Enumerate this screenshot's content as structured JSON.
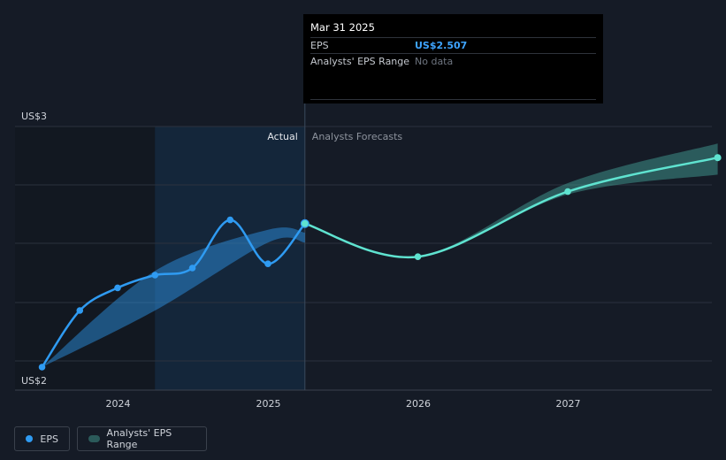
{
  "chart_data": {
    "type": "line",
    "y_axis": {
      "min_label": "US$2",
      "max_label": "US$3",
      "ylim": [
        2.0,
        2.85
      ]
    },
    "x_ticks": [
      "2024",
      "2025",
      "2026",
      "2027"
    ],
    "section_labels": {
      "actual": "Actual",
      "forecast": "Analysts Forecasts"
    },
    "series": [
      {
        "name": "EPS",
        "color": "#2f9bf2",
        "points": [
          {
            "x": "2023-06-30",
            "y": 2.0
          },
          {
            "x": "2023-09-30",
            "y": 2.2
          },
          {
            "x": "2023-12-31",
            "y": 2.28
          },
          {
            "x": "2024-03-31",
            "y": 2.325
          },
          {
            "x": "2024-06-30",
            "y": 2.35
          },
          {
            "x": "2024-09-30",
            "y": 2.52
          },
          {
            "x": "2024-12-31",
            "y": 2.365
          },
          {
            "x": "2025-03-31",
            "y": 2.507
          }
        ]
      },
      {
        "name": "EPS Forecast",
        "color": "#5fe3d0",
        "points": [
          {
            "x": "2025-03-31",
            "y": 2.507
          },
          {
            "x": "2025-12-31",
            "y": 2.39
          },
          {
            "x": "2026-12-31",
            "y": 2.62
          },
          {
            "x": "2027-12-31",
            "y": 2.74
          }
        ]
      }
    ],
    "analyst_range": {
      "name": "Analysts' EPS Range",
      "points": [
        {
          "x": "2023-06-30",
          "low": 2.0,
          "high": 2.0
        },
        {
          "x": "2024-03-31",
          "low": 2.2,
          "high": 2.34
        },
        {
          "x": "2024-12-31",
          "low": 2.44,
          "high": 2.485
        },
        {
          "x": "2025-03-31",
          "low": 2.44,
          "high": 2.475
        }
      ],
      "forecast_points": [
        {
          "x": "2025-03-31",
          "low": 2.507,
          "high": 2.507
        },
        {
          "x": "2025-12-31",
          "low": 2.39,
          "high": 2.39
        },
        {
          "x": "2026-12-31",
          "low": 2.61,
          "high": 2.65
        },
        {
          "x": "2027-12-31",
          "low": 2.68,
          "high": 2.79
        }
      ]
    }
  },
  "tooltip": {
    "date": "Mar 31 2025",
    "eps_label": "EPS",
    "eps_value": "US$2.507",
    "range_label": "Analysts' EPS Range",
    "range_value": "No data"
  },
  "legend": [
    {
      "label": "EPS",
      "color": "#2f9bf2"
    },
    {
      "label": "Analysts' EPS Range",
      "color": "#2b5a5a"
    }
  ]
}
